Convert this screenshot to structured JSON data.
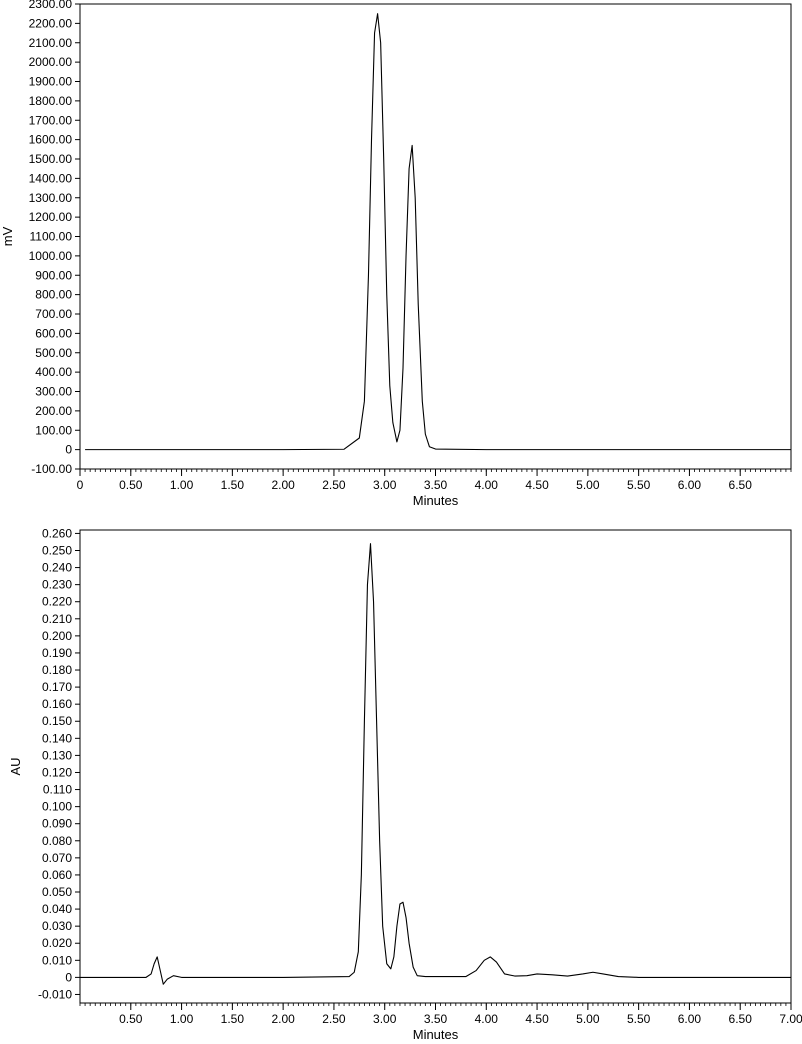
{
  "chart_data": [
    {
      "type": "line",
      "title": "",
      "xlabel": "Minutes",
      "ylabel": "mV",
      "xlim": [
        0,
        7.0
      ],
      "ylim": [
        -100,
        2300
      ],
      "x_ticks": [
        "0",
        "0.50",
        "1.00",
        "1.50",
        "2.00",
        "2.50",
        "3.00",
        "3.50",
        "4.00",
        "4.50",
        "5.00",
        "5.50",
        "6.00",
        "6.50"
      ],
      "x_tick_values": [
        0,
        0.5,
        1.0,
        1.5,
        2.0,
        2.5,
        3.0,
        3.5,
        4.0,
        4.5,
        5.0,
        5.5,
        6.0,
        6.5
      ],
      "y_ticks": [
        "-100.00",
        "0",
        "100.00",
        "200.00",
        "300.00",
        "400.00",
        "500.00",
        "600.00",
        "700.00",
        "800.00",
        "900.00",
        "1000.00",
        "1100.00",
        "1200.00",
        "1300.00",
        "1400.00",
        "1500.00",
        "1600.00",
        "1700.00",
        "1800.00",
        "1900.00",
        "2000.00",
        "2100.00",
        "2200.00",
        "2300.00"
      ],
      "y_tick_values": [
        -100,
        0,
        100,
        200,
        300,
        400,
        500,
        600,
        700,
        800,
        900,
        1000,
        1100,
        1200,
        1300,
        1400,
        1500,
        1600,
        1700,
        1800,
        1900,
        2000,
        2100,
        2200,
        2300
      ],
      "grid": false,
      "series": [
        {
          "x": [
            0.05,
            1.0,
            2.0,
            2.6,
            2.75,
            2.8,
            2.84,
            2.87,
            2.9,
            2.93,
            2.96,
            2.99,
            3.02,
            3.05,
            3.08,
            3.12,
            3.15,
            3.18,
            3.21,
            3.24,
            3.27,
            3.3,
            3.33,
            3.37,
            3.4,
            3.44,
            3.5,
            4.0,
            5.0,
            6.0,
            7.0
          ],
          "y": [
            0,
            0,
            0,
            2,
            60,
            250,
            900,
            1600,
            2150,
            2250,
            2100,
            1500,
            800,
            330,
            140,
            40,
            100,
            420,
            1000,
            1450,
            1570,
            1300,
            750,
            250,
            80,
            15,
            3,
            0,
            0,
            0,
            0
          ]
        }
      ]
    },
    {
      "type": "line",
      "title": "",
      "xlabel": "Minutes",
      "ylabel": "AU",
      "xlim": [
        0,
        7.0
      ],
      "ylim": [
        -0.015,
        0.262
      ],
      "x_ticks": [
        "0.50",
        "1.00",
        "1.50",
        "2.00",
        "2.50",
        "3.00",
        "3.50",
        "4.00",
        "4.50",
        "5.00",
        "5.50",
        "6.00",
        "6.50",
        "7.00"
      ],
      "x_tick_values": [
        0.5,
        1.0,
        1.5,
        2.0,
        2.5,
        3.0,
        3.5,
        4.0,
        4.5,
        5.0,
        5.5,
        6.0,
        6.5,
        7.0
      ],
      "y_ticks": [
        "-0.010",
        "0",
        "0.010",
        "0.020",
        "0.030",
        "0.040",
        "0.050",
        "0.060",
        "0.070",
        "0.080",
        "0.090",
        "0.100",
        "0.110",
        "0.120",
        "0.130",
        "0.140",
        "0.150",
        "0.160",
        "0.170",
        "0.180",
        "0.190",
        "0.200",
        "0.210",
        "0.220",
        "0.230",
        "0.240",
        "0.250",
        "0.260"
      ],
      "y_tick_values": [
        -0.01,
        0,
        0.01,
        0.02,
        0.03,
        0.04,
        0.05,
        0.06,
        0.07,
        0.08,
        0.09,
        0.1,
        0.11,
        0.12,
        0.13,
        0.14,
        0.15,
        0.16,
        0.17,
        0.18,
        0.19,
        0.2,
        0.21,
        0.22,
        0.23,
        0.24,
        0.25,
        0.26
      ],
      "grid": false,
      "series": [
        {
          "x": [
            0.0,
            0.65,
            0.7,
            0.73,
            0.76,
            0.79,
            0.82,
            0.86,
            0.92,
            1.0,
            2.0,
            2.65,
            2.7,
            2.74,
            2.77,
            2.8,
            2.83,
            2.86,
            2.89,
            2.92,
            2.95,
            2.98,
            3.02,
            3.06,
            3.09,
            3.12,
            3.15,
            3.18,
            3.21,
            3.24,
            3.28,
            3.32,
            3.4,
            3.8,
            3.9,
            3.98,
            4.04,
            4.1,
            4.18,
            4.28,
            4.4,
            4.5,
            4.65,
            4.8,
            4.95,
            5.05,
            5.15,
            5.3,
            5.5,
            6.0,
            7.0
          ],
          "y": [
            0,
            0,
            0.002,
            0.008,
            0.012,
            0.004,
            -0.004,
            -0.001,
            0.001,
            0,
            0,
            0.0005,
            0.003,
            0.015,
            0.06,
            0.15,
            0.23,
            0.254,
            0.22,
            0.15,
            0.08,
            0.03,
            0.008,
            0.005,
            0.012,
            0.03,
            0.043,
            0.044,
            0.035,
            0.02,
            0.006,
            0.001,
            0.0005,
            0.0005,
            0.004,
            0.01,
            0.012,
            0.009,
            0.002,
            0.0008,
            0.001,
            0.002,
            0.0015,
            0.0008,
            0.002,
            0.003,
            0.002,
            0.0005,
            0,
            0,
            0
          ]
        }
      ]
    }
  ]
}
